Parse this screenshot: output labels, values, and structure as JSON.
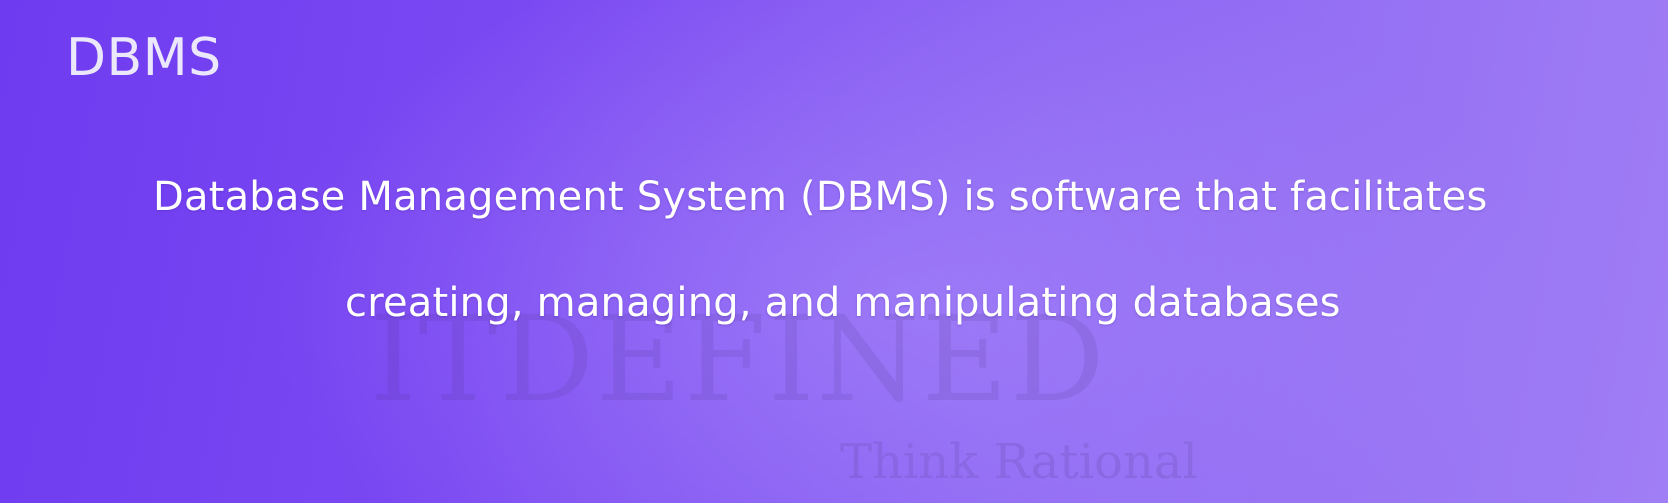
{
  "slide": {
    "title": "DBMS",
    "body_lines": [
      "Database Management System (DBMS) is software that facilitates",
      "creating, managing, and manipulating databases"
    ]
  },
  "watermark": {
    "brand": "ITDEFINED",
    "tagline": "Think Rational"
  },
  "colors": {
    "background_start": "#6e3bf0",
    "background_end": "#a07ef5",
    "text": "#ffffff",
    "title_text": "#ece8fb"
  }
}
